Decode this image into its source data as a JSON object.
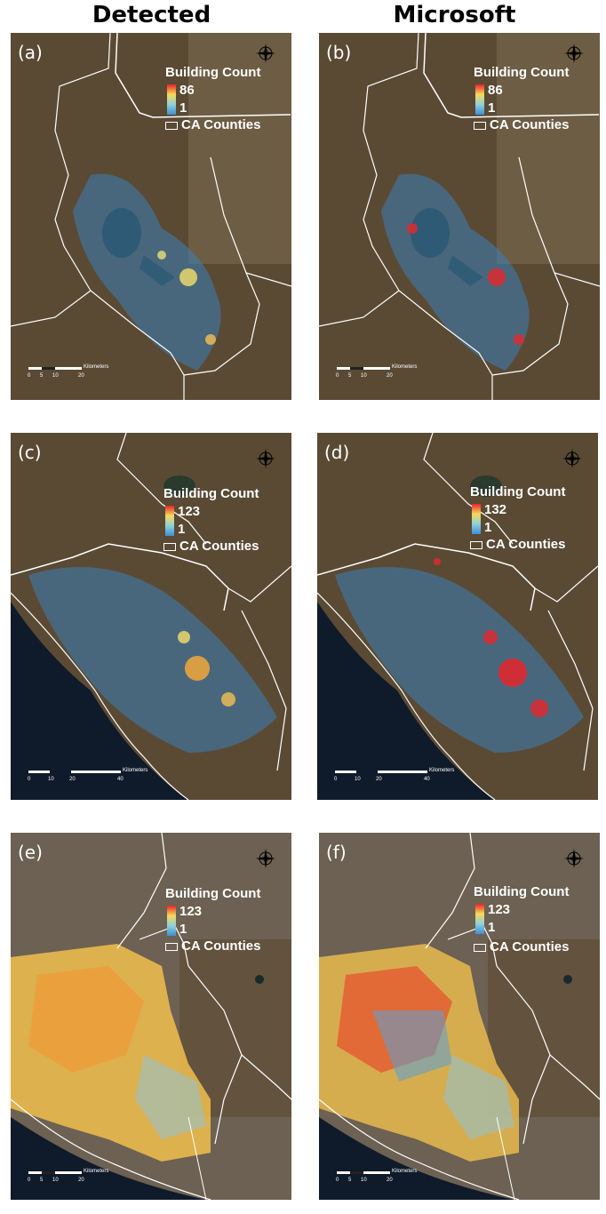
{
  "titles": {
    "left": "Detected",
    "right": "Microsoft"
  },
  "panels": [
    {
      "label": "(a)",
      "legend_title": "Building Count",
      "max": "86",
      "min": "1",
      "counties": "CA Counties",
      "scale": {
        "ticks": [
          "0",
          "5",
          "10",
          "20"
        ],
        "unit": "Kilometers"
      }
    },
    {
      "label": "(b)",
      "legend_title": "Building Count",
      "max": "86",
      "min": "1",
      "counties": "CA Counties",
      "scale": {
        "ticks": [
          "0",
          "5",
          "10",
          "20"
        ],
        "unit": "Kilometers"
      }
    },
    {
      "label": "(c)",
      "legend_title": "Building Count",
      "max": "123",
      "min": "1",
      "counties": "CA Counties",
      "scale": {
        "ticks": [
          "0",
          "10",
          "20",
          "40"
        ],
        "unit": "Kilometers"
      }
    },
    {
      "label": "(d)",
      "legend_title": "Building Count",
      "max": "132",
      "min": "1",
      "counties": "CA Counties",
      "scale": {
        "ticks": [
          "0",
          "10",
          "20",
          "40"
        ],
        "unit": "Kilometers"
      }
    },
    {
      "label": "(e)",
      "legend_title": "Building Count",
      "max": "123",
      "min": "1",
      "counties": "CA Counties",
      "scale": {
        "ticks": [
          "0",
          "5",
          "10",
          "20"
        ],
        "unit": "Kilometers"
      }
    },
    {
      "label": "(f)",
      "legend_title": "Building Count",
      "max": "123",
      "min": "1",
      "counties": "CA Counties",
      "scale": {
        "ticks": [
          "0",
          "5",
          "10",
          "20"
        ],
        "unit": "Kilometers"
      }
    }
  ],
  "colors": {
    "ramp_high": "#e8252b",
    "ramp_mid": "#f7d85a",
    "ramp_low": "#3d8fd6",
    "terrain": "#5a4a35",
    "water": "#0f1a2a",
    "boundary": "#ffffff"
  }
}
